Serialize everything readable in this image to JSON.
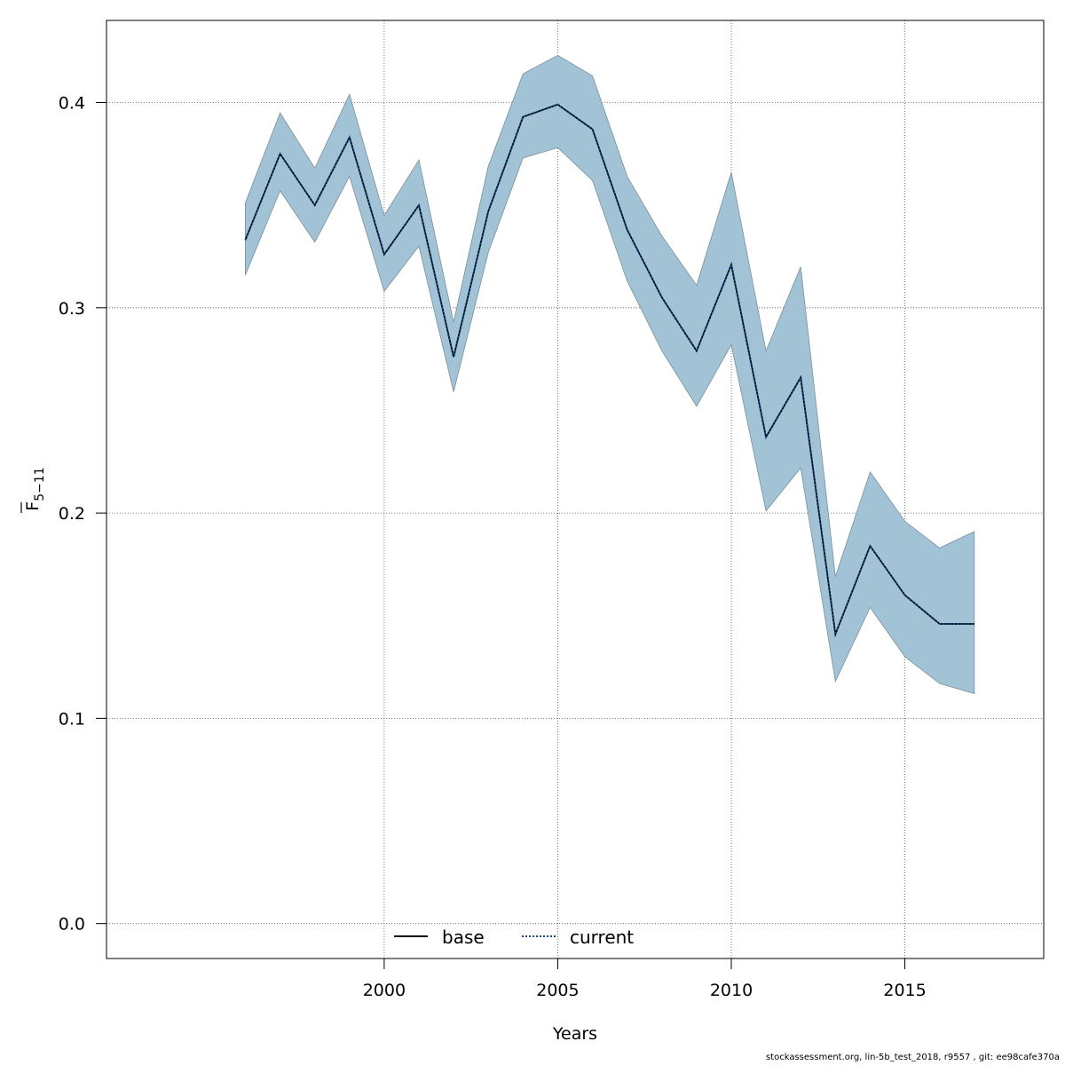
{
  "chart_data": {
    "type": "line",
    "xlabel": "Years",
    "ylabel": {
      "main": "F",
      "sub": "5−11"
    },
    "xlim": [
      1992,
      2019
    ],
    "ylim": [
      -0.017,
      0.44
    ],
    "xticks": [
      2000,
      2005,
      2010,
      2015
    ],
    "yticks": [
      0.0,
      0.1,
      0.2,
      0.3,
      0.4
    ],
    "ytick_labels": [
      "0.0",
      "0.1",
      "0.2",
      "0.3",
      "0.4"
    ],
    "grid": true,
    "legend_position": "bottom-center",
    "x": [
      1996,
      1997,
      1998,
      1999,
      2000,
      2001,
      2002,
      2003,
      2004,
      2005,
      2006,
      2007,
      2008,
      2009,
      2010,
      2011,
      2012,
      2013,
      2014,
      2015,
      2016,
      2017
    ],
    "series": [
      {
        "name": "base",
        "style": "solid",
        "color": "#000000",
        "values": [
          0.333,
          0.375,
          0.35,
          0.383,
          0.326,
          0.35,
          0.276,
          0.347,
          0.393,
          0.399,
          0.387,
          0.338,
          0.305,
          0.279,
          0.321,
          0.237,
          0.266,
          0.141,
          0.184,
          0.16,
          0.146,
          0.146
        ]
      },
      {
        "name": "current",
        "style": "dotted",
        "color": "#0b4a8a",
        "values": [
          0.333,
          0.375,
          0.35,
          0.383,
          0.326,
          0.35,
          0.276,
          0.347,
          0.393,
          0.399,
          0.387,
          0.338,
          0.305,
          0.279,
          0.321,
          0.237,
          0.266,
          0.141,
          0.184,
          0.16,
          0.146,
          0.146
        ]
      }
    ],
    "band": {
      "color": "#a2c3d5",
      "edge_color": "#7a8f9c",
      "lower": [
        0.316,
        0.357,
        0.332,
        0.364,
        0.308,
        0.33,
        0.259,
        0.327,
        0.373,
        0.378,
        0.362,
        0.313,
        0.279,
        0.252,
        0.282,
        0.201,
        0.222,
        0.118,
        0.154,
        0.13,
        0.117,
        0.112
      ],
      "upper": [
        0.351,
        0.395,
        0.368,
        0.404,
        0.345,
        0.372,
        0.293,
        0.369,
        0.414,
        0.423,
        0.413,
        0.364,
        0.335,
        0.311,
        0.366,
        0.279,
        0.32,
        0.169,
        0.22,
        0.196,
        0.183,
        0.191
      ]
    }
  },
  "footer_text": "stockassessment.org, lin-5b_test_2018, r9557 , git: ee98cafe370a"
}
